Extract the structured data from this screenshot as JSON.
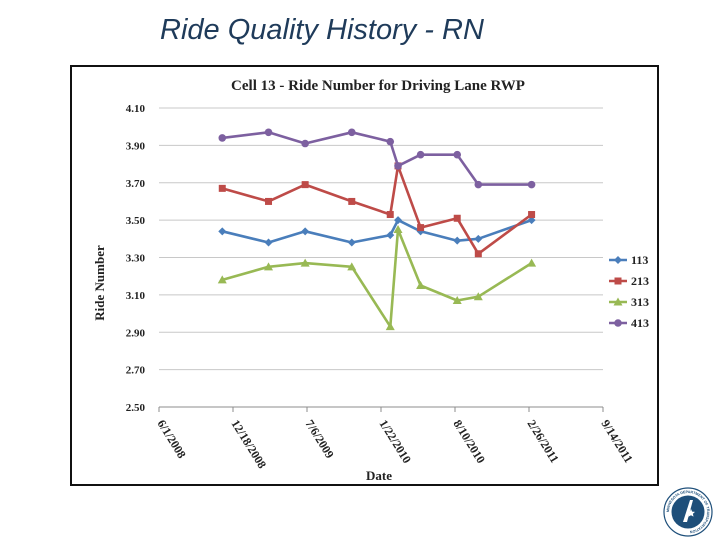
{
  "slide": {
    "title": "Ride Quality History - RN"
  },
  "logo": {
    "name": "department-of-transportation-seal",
    "text": "MINNESOTA DEPARTMENT OF TRANSPORTATION"
  },
  "chart_data": {
    "type": "line",
    "title": "Cell 13 - Ride Number for Driving Lane RWP",
    "xlabel": "Date",
    "ylabel": "Ride Number",
    "x_axis_type": "date",
    "xlim": [
      "2008-06-01",
      "2011-09-14"
    ],
    "ylim": [
      2.5,
      4.1
    ],
    "y_ticks": [
      2.5,
      2.7,
      2.9,
      3.1,
      3.3,
      3.5,
      3.7,
      3.9,
      4.1
    ],
    "y_tick_labels": [
      "2.50",
      "2.70",
      "2.90",
      "3.10",
      "3.30",
      "3.50",
      "3.70",
      "3.90",
      "4.10"
    ],
    "x_ticks": [
      "2008-06-01",
      "2008-12-18",
      "2009-07-06",
      "2010-01-22",
      "2010-08-10",
      "2011-02-26",
      "2011-09-14"
    ],
    "x_tick_labels": [
      "6/1/2008",
      "12/18/2008",
      "7/6/2009",
      "1/22/2010",
      "8/10/2010",
      "2/26/2011",
      "9/14/2011"
    ],
    "grid": "horizontal",
    "legend_position": "right",
    "series": [
      {
        "name": "113",
        "color": "#4a7ebb",
        "marker": "diamond",
        "points": [
          {
            "x": "2008-11-19",
            "y": 3.44
          },
          {
            "x": "2009-03-24",
            "y": 3.38
          },
          {
            "x": "2009-07-01",
            "y": 3.44
          },
          {
            "x": "2009-11-04",
            "y": 3.38
          },
          {
            "x": "2010-02-16",
            "y": 3.42
          },
          {
            "x": "2010-03-09",
            "y": 3.5
          },
          {
            "x": "2010-05-09",
            "y": 3.44
          },
          {
            "x": "2010-08-16",
            "y": 3.39
          },
          {
            "x": "2010-10-12",
            "y": 3.4
          },
          {
            "x": "2011-03-05",
            "y": 3.5
          }
        ]
      },
      {
        "name": "213",
        "color": "#be4b48",
        "marker": "square",
        "points": [
          {
            "x": "2008-11-19",
            "y": 3.67
          },
          {
            "x": "2009-03-24",
            "y": 3.6
          },
          {
            "x": "2009-07-01",
            "y": 3.69
          },
          {
            "x": "2009-11-04",
            "y": 3.6
          },
          {
            "x": "2010-02-16",
            "y": 3.53
          },
          {
            "x": "2010-03-09",
            "y": 3.79
          },
          {
            "x": "2010-05-09",
            "y": 3.46
          },
          {
            "x": "2010-08-16",
            "y": 3.51
          },
          {
            "x": "2010-10-12",
            "y": 3.32
          },
          {
            "x": "2011-03-05",
            "y": 3.53
          }
        ]
      },
      {
        "name": "313",
        "color": "#98b954",
        "marker": "triangle",
        "points": [
          {
            "x": "2008-11-19",
            "y": 3.18
          },
          {
            "x": "2009-03-24",
            "y": 3.25
          },
          {
            "x": "2009-07-01",
            "y": 3.27
          },
          {
            "x": "2009-11-04",
            "y": 3.25
          },
          {
            "x": "2010-02-16",
            "y": 2.93
          },
          {
            "x": "2010-03-09",
            "y": 3.45
          },
          {
            "x": "2010-05-09",
            "y": 3.15
          },
          {
            "x": "2010-08-16",
            "y": 3.07
          },
          {
            "x": "2010-10-12",
            "y": 3.09
          },
          {
            "x": "2011-03-05",
            "y": 3.27
          }
        ]
      },
      {
        "name": "413",
        "color": "#7d60a0",
        "marker": "circle",
        "points": [
          {
            "x": "2008-11-19",
            "y": 3.94
          },
          {
            "x": "2009-03-24",
            "y": 3.97
          },
          {
            "x": "2009-07-01",
            "y": 3.91
          },
          {
            "x": "2009-11-04",
            "y": 3.97
          },
          {
            "x": "2010-02-16",
            "y": 3.92
          },
          {
            "x": "2010-03-09",
            "y": 3.79
          },
          {
            "x": "2010-05-09",
            "y": 3.85
          },
          {
            "x": "2010-08-16",
            "y": 3.85
          },
          {
            "x": "2010-10-12",
            "y": 3.69
          },
          {
            "x": "2011-03-05",
            "y": 3.69
          }
        ]
      }
    ]
  }
}
